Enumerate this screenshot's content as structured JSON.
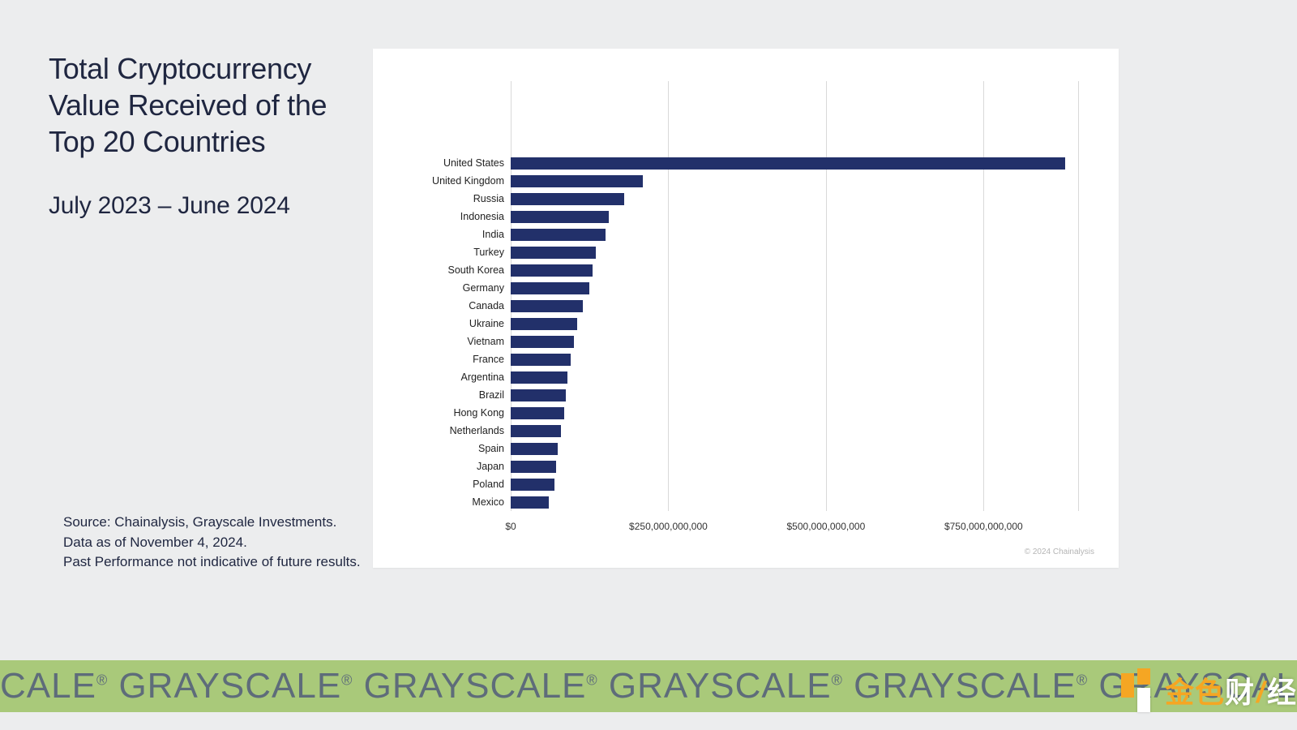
{
  "title": "Total Cryptocurrency Value Received of the Top 20 Countries",
  "subtitle": "July 2023  – June 2024",
  "footnote_lines": [
    "Source: Chainalysis, Grayscale Investments.",
    "Data as of November 4, 2024.",
    "Past Performance not indicative of future results."
  ],
  "chart": {
    "type": "bar-horizontal",
    "bar_color": "#22306a",
    "background_color": "#ffffff",
    "grid_color": "#d9d9d9",
    "label_fontsize": 12.5,
    "tick_fontsize": 12,
    "xlim": [
      0,
      900000000000
    ],
    "x_ticks": [
      {
        "value": 0,
        "label": "$0"
      },
      {
        "value": 250000000000,
        "label": "$250,000,000,000"
      },
      {
        "value": 500000000000,
        "label": "$500,000,000,000"
      },
      {
        "value": 750000000000,
        "label": "$750,000,000,000"
      }
    ],
    "bars": [
      {
        "label": "United States",
        "value": 880000000000
      },
      {
        "label": "United Kingdom",
        "value": 210000000000
      },
      {
        "label": "Russia",
        "value": 180000000000
      },
      {
        "label": "Indonesia",
        "value": 155000000000
      },
      {
        "label": "India",
        "value": 150000000000
      },
      {
        "label": "Turkey",
        "value": 135000000000
      },
      {
        "label": "South Korea",
        "value": 130000000000
      },
      {
        "label": "Germany",
        "value": 125000000000
      },
      {
        "label": "Canada",
        "value": 115000000000
      },
      {
        "label": "Ukraine",
        "value": 105000000000
      },
      {
        "label": "Vietnam",
        "value": 100000000000
      },
      {
        "label": "France",
        "value": 95000000000
      },
      {
        "label": "Argentina",
        "value": 90000000000
      },
      {
        "label": "Brazil",
        "value": 88000000000
      },
      {
        "label": "Hong Kong",
        "value": 85000000000
      },
      {
        "label": "Netherlands",
        "value": 80000000000
      },
      {
        "label": "Spain",
        "value": 75000000000
      },
      {
        "label": "Japan",
        "value": 72000000000
      },
      {
        "label": "Poland",
        "value": 70000000000
      },
      {
        "label": "Mexico",
        "value": 60000000000
      }
    ],
    "copyright": "© 2024 Chainalysis"
  },
  "footer_watermark": "CALE  GRAYSCALE  GRAYSCALE  GRAYSCALE  GRAYSCALE  GRAYSCALE  GRAYS",
  "overlay_logo": {
    "cn_text_parts": [
      "金色",
      "财",
      "经"
    ],
    "accent_color": "#f5a623"
  }
}
